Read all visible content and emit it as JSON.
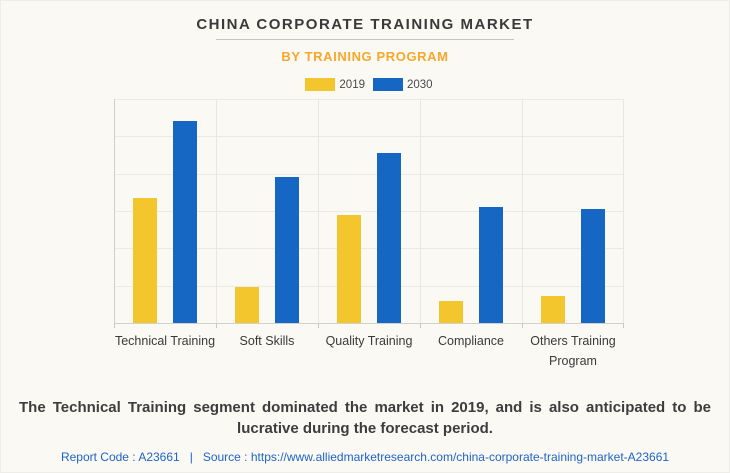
{
  "page": {
    "background_color": "#FBF9F4"
  },
  "header": {
    "title": "CHINA CORPORATE TRAINING MARKET",
    "subtitle": "BY TRAINING PROGRAM",
    "subtitle_color": "#F9A629"
  },
  "chart_data": {
    "type": "bar",
    "categories": [
      "Technical Training",
      "Soft Skills",
      "Quality Training",
      "Compliance",
      "Others Training Program"
    ],
    "series": [
      {
        "name": "2019",
        "color": "#F3C62D",
        "values": [
          56,
          16,
          48,
          10,
          12
        ]
      },
      {
        "name": "2030",
        "color": "#1666C3",
        "values": [
          90,
          65,
          76,
          52,
          51
        ]
      }
    ],
    "title": "CHINA CORPORATE TRAINING MARKET",
    "subtitle": "BY TRAINING PROGRAM",
    "xlabel": "",
    "ylabel": "",
    "ylim": [
      0,
      100
    ],
    "y_axis_labels_visible": false,
    "gridlines": 6,
    "grid": true,
    "legend_position": "top"
  },
  "summary": {
    "text": "The Technical Training segment dominated the market in 2019, and is also anticipated to be lucrative during the forecast period."
  },
  "footer": {
    "report_code": "Report Code : A23661",
    "separator": "|",
    "source_label": "Source :",
    "source_url": "https://www.alliedmarketresearch.com/china-corporate-training-market-A23661",
    "link_color": "#1E63C9"
  }
}
